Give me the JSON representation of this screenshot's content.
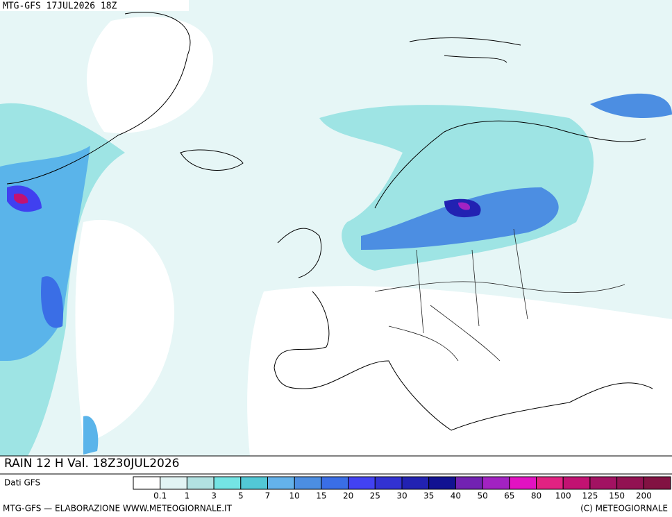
{
  "header": "MTG-GFS 17JUL2026 18Z",
  "title": "RAIN 12 H Val. 18Z30JUL2026",
  "source": "Dati GFS",
  "footer_left": "MTG-GFS — ELABORAZIONE WWW.METEOGIORNALE.IT",
  "footer_right": "(C) METEOGIORNALE",
  "legend": {
    "colors": [
      "#ffffff",
      "#e2f4f4",
      "#b2e2e2",
      "#74e4e4",
      "#52c8d6",
      "#64b2ea",
      "#4c8ee2",
      "#3a6ee6",
      "#4242f2",
      "#3232d2",
      "#2222b2",
      "#121292",
      "#7222b2",
      "#a222c2",
      "#e212c2",
      "#e22282",
      "#c21272",
      "#a21262",
      "#921252",
      "#821242"
    ],
    "labels": [
      0.1,
      1,
      3,
      5,
      7,
      10,
      15,
      20,
      25,
      30,
      35,
      40,
      50,
      65,
      80,
      100,
      125,
      150,
      200
    ]
  }
}
